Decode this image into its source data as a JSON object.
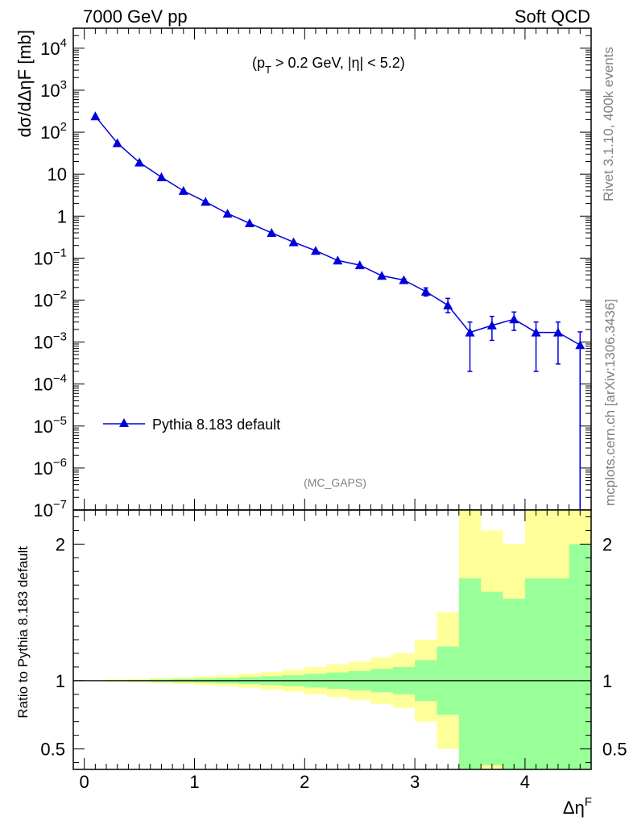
{
  "header": {
    "left_title": "7000 GeV pp",
    "right_title": "Soft QCD"
  },
  "side_labels": {
    "rivet": "Rivet 3.1.10,  400k events",
    "mcplots": "mcplots.cern.ch [arXiv:1306.3436]"
  },
  "colors": {
    "series": "#0000dd",
    "band_inner": "#99ff99",
    "band_outer": "#ffff99",
    "gray_text": "#808080"
  },
  "chart_data": [
    {
      "type": "line",
      "panel": "main",
      "title": "",
      "cut_label_parts": {
        "open": "(p",
        "sub": "T",
        "rest": " > 0.2 GeV, |η| < 5.2)"
      },
      "watermark": "(MC_GAPS)",
      "xlabel": "ΔηF",
      "ylabel": "dσ/dΔηF [mb]",
      "yscale": "log",
      "xlim": [
        -0.1,
        4.6
      ],
      "ylim": [
        1e-07,
        30000.0
      ],
      "yticks": [
        {
          "v": 10000.0,
          "base": "10",
          "exp": "4"
        },
        {
          "v": 1000.0,
          "base": "10",
          "exp": "3"
        },
        {
          "v": 100.0,
          "base": "10",
          "exp": "2"
        },
        {
          "v": 10,
          "base": "10",
          "exp": ""
        },
        {
          "v": 1,
          "base": "1",
          "exp": ""
        },
        {
          "v": 0.1,
          "base": "10",
          "exp": "−1"
        },
        {
          "v": 0.01,
          "base": "10",
          "exp": "−2"
        },
        {
          "v": 0.001,
          "base": "10",
          "exp": "−3"
        },
        {
          "v": 0.0001,
          "base": "10",
          "exp": "−4"
        },
        {
          "v": 1e-05,
          "base": "10",
          "exp": "−5"
        },
        {
          "v": 1e-06,
          "base": "10",
          "exp": "−6"
        },
        {
          "v": 1e-07,
          "base": "10",
          "exp": "−7"
        }
      ],
      "legend": {
        "label": "Pythia 8.183 default",
        "position": "lower-left"
      },
      "series": [
        {
          "name": "Pythia 8.183 default",
          "marker": "triangle-up",
          "x": [
            0.1,
            0.3,
            0.5,
            0.7,
            0.9,
            1.1,
            1.3,
            1.5,
            1.7,
            1.9,
            2.1,
            2.3,
            2.5,
            2.7,
            2.9,
            3.1,
            3.3,
            3.5,
            3.7,
            3.9,
            4.1,
            4.3,
            4.5
          ],
          "y": [
            240,
            55,
            19,
            8.5,
            4.0,
            2.2,
            1.15,
            0.68,
            0.4,
            0.24,
            0.15,
            0.088,
            0.068,
            0.038,
            0.03,
            0.016,
            0.0075,
            0.0017,
            0.0025,
            0.0035,
            0.0017,
            0.0017,
            0.00085
          ],
          "err_lo": [
            0,
            0,
            0,
            0,
            0,
            0,
            0,
            0,
            0,
            0,
            0,
            0,
            0,
            0,
            0.002,
            0.0035,
            0.0025,
            0.0015,
            0.0014,
            0.0016,
            0.0015,
            0.0014,
            0.00085
          ],
          "err_hi": [
            0,
            0,
            0,
            0,
            0,
            0,
            0,
            0,
            0,
            0,
            0,
            0,
            0,
            0,
            0.002,
            0.0035,
            0.0035,
            0.0013,
            0.0016,
            0.0017,
            0.0013,
            0.0013,
            0.0009
          ]
        }
      ]
    },
    {
      "type": "area",
      "panel": "ratio",
      "ylabel": "Ratio to Pythia 8.183 default",
      "xlabel_parts": {
        "base": "Δη",
        "sup": "F"
      },
      "xlim": [
        -0.1,
        4.6
      ],
      "ylim": [
        0.35,
        2.25
      ],
      "yticks": [
        {
          "v": 0.5,
          "label": "0.5"
        },
        {
          "v": 1,
          "label": "1"
        },
        {
          "v": 2,
          "label": "2"
        }
      ],
      "xticks": [
        {
          "v": 0,
          "label": "0"
        },
        {
          "v": 1,
          "label": "1"
        },
        {
          "v": 2,
          "label": "2"
        },
        {
          "v": 3,
          "label": "3"
        },
        {
          "v": 4,
          "label": "4"
        }
      ],
      "bin_edges": [
        0,
        0.2,
        0.4,
        0.6,
        0.8,
        1.0,
        1.2,
        1.4,
        1.6,
        1.8,
        2.0,
        2.2,
        2.4,
        2.6,
        2.8,
        3.0,
        3.2,
        3.4,
        3.6,
        3.8,
        4.0,
        4.2,
        4.4,
        4.6
      ],
      "band_inner": {
        "upper": [
          1.002,
          1.004,
          1.006,
          1.009,
          1.012,
          1.016,
          1.02,
          1.026,
          1.033,
          1.04,
          1.05,
          1.06,
          1.07,
          1.085,
          1.1,
          1.15,
          1.25,
          1.75,
          1.65,
          1.6,
          1.75,
          1.75,
          2.0
        ],
        "lower": [
          0.998,
          0.996,
          0.994,
          0.991,
          0.988,
          0.984,
          0.98,
          0.975,
          0.968,
          0.96,
          0.95,
          0.94,
          0.93,
          0.915,
          0.9,
          0.85,
          0.75,
          0.25,
          0.38,
          0.25,
          0.25,
          0.25,
          0.25
        ]
      },
      "band_outer": {
        "upper": [
          1.004,
          1.008,
          1.012,
          1.018,
          1.024,
          1.032,
          1.04,
          1.052,
          1.065,
          1.08,
          1.1,
          1.12,
          1.14,
          1.17,
          1.2,
          1.3,
          1.5,
          2.35,
          2.1,
          2.0,
          2.35,
          2.35,
          2.35
        ],
        "lower": [
          0.996,
          0.992,
          0.988,
          0.982,
          0.976,
          0.968,
          0.96,
          0.948,
          0.935,
          0.92,
          0.9,
          0.88,
          0.86,
          0.83,
          0.8,
          0.7,
          0.5,
          0.25,
          0.25,
          0.25,
          0.25,
          0.25,
          0.25
        ]
      },
      "reference_line": 1
    }
  ]
}
